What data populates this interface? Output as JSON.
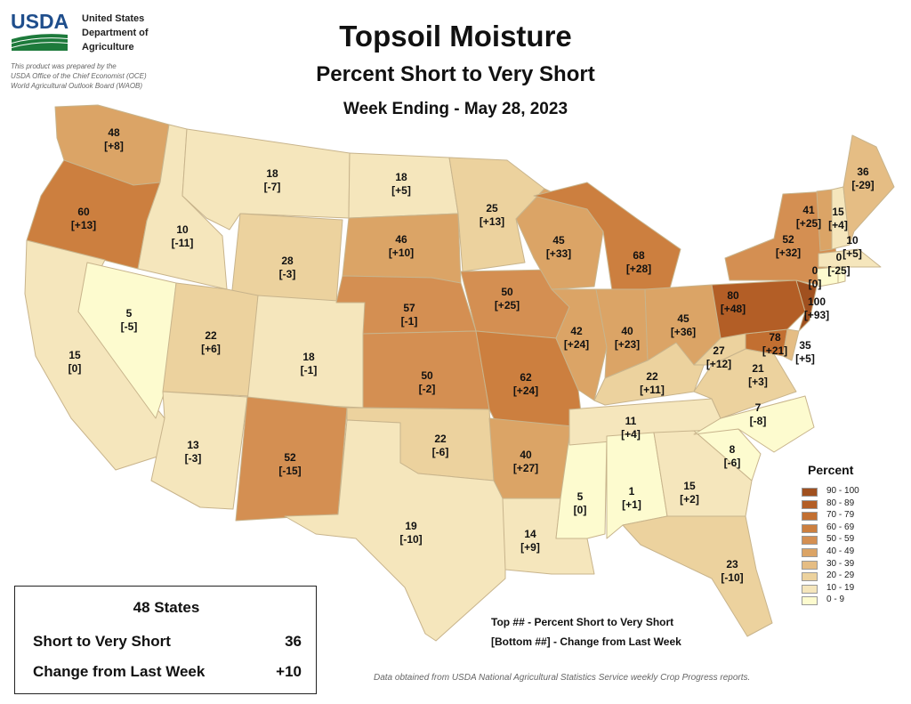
{
  "header": {
    "logo_text": "USDA",
    "agency_lines": [
      "United States",
      "Department of",
      "Agriculture"
    ],
    "prepared_lines": [
      "This product was prepared by the",
      "USDA Office of the Chief Economist (OCE)",
      "World Agricultural Outlook Board (WAOB)"
    ],
    "title": "Topsoil Moisture",
    "subtitle": "Percent Short to Very Short",
    "week": "Week Ending - May 28, 2023"
  },
  "legend": {
    "title": "Percent",
    "bins": [
      {
        "label": "90 - 100",
        "color": "#a0501f"
      },
      {
        "label": "80 - 89",
        "color": "#b35e26"
      },
      {
        "label": "70 - 79",
        "color": "#c26f31"
      },
      {
        "label": "60 - 69",
        "color": "#cc7f3f"
      },
      {
        "label": "50 - 59",
        "color": "#d48f52"
      },
      {
        "label": "40 - 49",
        "color": "#dba466"
      },
      {
        "label": "30 - 39",
        "color": "#e5bd84"
      },
      {
        "label": "20 - 29",
        "color": "#ecd29e"
      },
      {
        "label": "10 - 19",
        "color": "#f5e6bc"
      },
      {
        "label": "0 - 9",
        "color": "#fdfbcf"
      }
    ]
  },
  "key": {
    "top": "Top ## - Percent Short to Very Short",
    "bottom": "[Bottom ##] - Change from Last Week"
  },
  "summary": {
    "title": "48 States",
    "rows": [
      {
        "label": "Short to Very Short",
        "value": "36"
      },
      {
        "label": "Change from Last Week",
        "value": "+10"
      }
    ]
  },
  "source": "Data obtained from USDA National Agricultural Statistics Service weekly Crop Progress reports.",
  "states": [
    {
      "id": "WA",
      "value": "48",
      "change": "[+8]"
    },
    {
      "id": "OR",
      "value": "60",
      "change": "[+13]"
    },
    {
      "id": "CA",
      "value": "15",
      "change": "[0]"
    },
    {
      "id": "NV",
      "value": "5",
      "change": "[-5]"
    },
    {
      "id": "ID",
      "value": "10",
      "change": "[-11]"
    },
    {
      "id": "MT",
      "value": "18",
      "change": "[-7]"
    },
    {
      "id": "WY",
      "value": "28",
      "change": "[-3]"
    },
    {
      "id": "UT",
      "value": "22",
      "change": "[+6]"
    },
    {
      "id": "AZ",
      "value": "13",
      "change": "[-3]"
    },
    {
      "id": "CO",
      "value": "18",
      "change": "[-1]"
    },
    {
      "id": "NM",
      "value": "52",
      "change": "[-15]"
    },
    {
      "id": "ND",
      "value": "18",
      "change": "[+5]"
    },
    {
      "id": "SD",
      "value": "46",
      "change": "[+10]"
    },
    {
      "id": "NE",
      "value": "57",
      "change": "[-1]"
    },
    {
      "id": "KS",
      "value": "50",
      "change": "[-2]"
    },
    {
      "id": "OK",
      "value": "22",
      "change": "[-6]"
    },
    {
      "id": "TX",
      "value": "19",
      "change": "[-10]"
    },
    {
      "id": "MN",
      "value": "25",
      "change": "[+13]"
    },
    {
      "id": "IA",
      "value": "50",
      "change": "[+25]"
    },
    {
      "id": "MO",
      "value": "62",
      "change": "[+24]"
    },
    {
      "id": "AR",
      "value": "40",
      "change": "[+27]"
    },
    {
      "id": "LA",
      "value": "14",
      "change": "[+9]"
    },
    {
      "id": "WI",
      "value": "45",
      "change": "[+33]"
    },
    {
      "id": "IL",
      "value": "42",
      "change": "[+24]"
    },
    {
      "id": "MS",
      "value": "5",
      "change": "[0]"
    },
    {
      "id": "MI",
      "value": "68",
      "change": "[+28]"
    },
    {
      "id": "IN",
      "value": "40",
      "change": "[+23]"
    },
    {
      "id": "KY",
      "value": "22",
      "change": "[+11]"
    },
    {
      "id": "TN",
      "value": "11",
      "change": "[+4]"
    },
    {
      "id": "AL",
      "value": "1",
      "change": "[+1]"
    },
    {
      "id": "OH",
      "value": "45",
      "change": "[+36]"
    },
    {
      "id": "GA",
      "value": "15",
      "change": "[+2]"
    },
    {
      "id": "FL",
      "value": "23",
      "change": "[-10]"
    },
    {
      "id": "SC",
      "value": "8",
      "change": "[-6]"
    },
    {
      "id": "NC",
      "value": "7",
      "change": "[-8]"
    },
    {
      "id": "VA",
      "value": "21",
      "change": "[+3]"
    },
    {
      "id": "WV",
      "value": "27",
      "change": "[+12]"
    },
    {
      "id": "MD",
      "value": "78",
      "change": "[+21]"
    },
    {
      "id": "DE",
      "value": "35",
      "change": "[+5]"
    },
    {
      "id": "PA",
      "value": "80",
      "change": "[+48]"
    },
    {
      "id": "NJ",
      "value": "100",
      "change": "[+93]"
    },
    {
      "id": "NY",
      "value": "52",
      "change": "[+32]"
    },
    {
      "id": "CT",
      "value": "0",
      "change": "[0]"
    },
    {
      "id": "RI",
      "value": "0",
      "change": "[-25]"
    },
    {
      "id": "MA",
      "value": "10",
      "change": "[+5]"
    },
    {
      "id": "VT",
      "value": "41",
      "change": "[+25]"
    },
    {
      "id": "NH",
      "value": "15",
      "change": "[+4]"
    },
    {
      "id": "ME",
      "value": "36",
      "change": "[-29]"
    }
  ]
}
